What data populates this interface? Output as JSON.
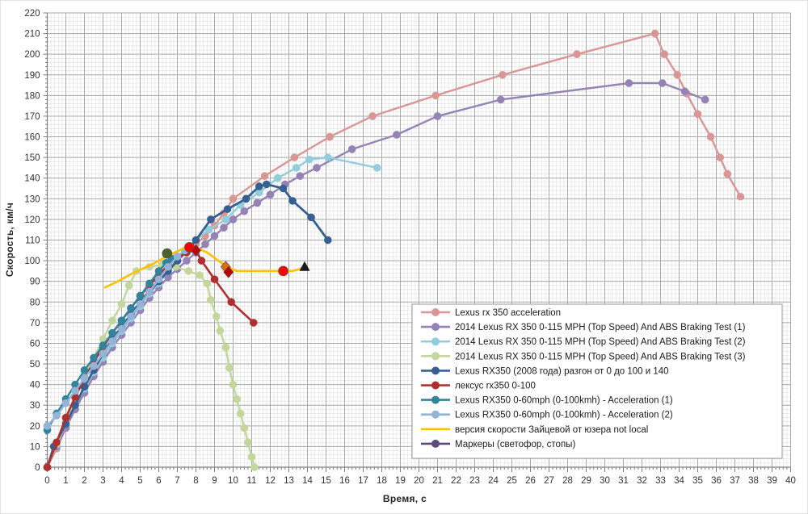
{
  "chart_data": {
    "type": "line",
    "title": "",
    "xlabel": "Время, с",
    "ylabel": "Скорость, км/ч",
    "xlim": [
      0,
      40
    ],
    "ylim": [
      0,
      220
    ],
    "x_major_step": 1,
    "x_minor_step": 0.2,
    "y_major_step": 10,
    "y_minor_step": 2,
    "grid": "on",
    "legend_position": "inside-right-bottom",
    "colors": {
      "major_grid": "#a9a9a9",
      "minor_grid": "#dedede",
      "axis": "#7f7f7f",
      "tick_label": "#333333",
      "legend_border": "#9a9a9a",
      "legend_bg": "#ffffff",
      "legend_text": "#1a1a1a"
    },
    "series": [
      {
        "name": "Lexus rx 350  acceleration",
        "color": "#d99694",
        "marker": "circle",
        "width": 2.4,
        "points": [
          [
            0,
            0
          ],
          [
            0.5,
            9
          ],
          [
            1,
            19
          ],
          [
            1.5,
            28
          ],
          [
            2,
            37
          ],
          [
            2.5,
            45
          ],
          [
            3,
            53
          ],
          [
            3.5,
            60
          ],
          [
            4,
            67
          ],
          [
            4.5,
            74
          ],
          [
            5,
            80
          ],
          [
            5.5,
            86
          ],
          [
            6,
            91
          ],
          [
            6.5,
            96
          ],
          [
            7,
            100
          ],
          [
            7.5,
            104
          ],
          [
            8,
            108
          ],
          [
            8.5,
            112
          ],
          [
            9,
            117
          ],
          [
            9.5,
            123
          ],
          [
            10,
            130
          ],
          [
            11.7,
            141
          ],
          [
            13.3,
            150
          ],
          [
            15.2,
            160
          ],
          [
            17.5,
            170
          ],
          [
            20.9,
            180
          ],
          [
            24.5,
            190
          ],
          [
            28.5,
            200
          ],
          [
            32.7,
            210
          ],
          [
            33.2,
            200
          ],
          [
            33.9,
            190
          ],
          [
            34.4,
            181
          ],
          [
            35,
            171
          ],
          [
            35.7,
            160
          ],
          [
            36.2,
            150
          ],
          [
            36.6,
            142
          ],
          [
            37.3,
            131
          ]
        ]
      },
      {
        "name": "2014  Lexus RX 350  0-115  MPH (Top Speed) And ABS Braking Test (1)",
        "color": "#9583b5",
        "marker": "circle",
        "width": 2.4,
        "points": [
          [
            0,
            0
          ],
          [
            0.5,
            10
          ],
          [
            1,
            19
          ],
          [
            1.5,
            28
          ],
          [
            2,
            36
          ],
          [
            2.5,
            44
          ],
          [
            3,
            51
          ],
          [
            3.5,
            58
          ],
          [
            4,
            64
          ],
          [
            4.5,
            70
          ],
          [
            5,
            76
          ],
          [
            5.5,
            82
          ],
          [
            6,
            87
          ],
          [
            6.5,
            92
          ],
          [
            7,
            96
          ],
          [
            7.5,
            100
          ],
          [
            8,
            104
          ],
          [
            8.5,
            108
          ],
          [
            9,
            112
          ],
          [
            9.5,
            116
          ],
          [
            10,
            120
          ],
          [
            10.6,
            124
          ],
          [
            11.3,
            128
          ],
          [
            12,
            132
          ],
          [
            12.8,
            137
          ],
          [
            13.6,
            141
          ],
          [
            14.5,
            145
          ],
          [
            16.4,
            154
          ],
          [
            18.8,
            161
          ],
          [
            21,
            170
          ],
          [
            24.4,
            178
          ],
          [
            31.3,
            186
          ],
          [
            33.1,
            186
          ],
          [
            34.3,
            182
          ],
          [
            35.4,
            178
          ]
        ]
      },
      {
        "name": "2014  Lexus RX 350  0-115  MPH (Top Speed) And ABS Braking Test (2)",
        "color": "#92cddc",
        "marker": "circle",
        "width": 2.4,
        "points": [
          [
            0,
            0
          ],
          [
            0.5,
            11
          ],
          [
            1,
            21
          ],
          [
            1.5,
            30
          ],
          [
            2,
            38
          ],
          [
            2.5,
            46
          ],
          [
            3,
            53
          ],
          [
            3.5,
            60
          ],
          [
            4,
            66
          ],
          [
            4.5,
            72
          ],
          [
            5,
            78
          ],
          [
            5.5,
            84
          ],
          [
            6,
            89
          ],
          [
            6.5,
            95
          ],
          [
            7,
            100
          ],
          [
            7.5,
            105
          ],
          [
            8,
            110
          ],
          [
            8.7,
            115
          ],
          [
            9.6,
            120
          ],
          [
            10.4,
            127
          ],
          [
            11.4,
            133
          ],
          [
            12.4,
            140
          ],
          [
            13.4,
            145
          ],
          [
            14.1,
            149
          ],
          [
            15.1,
            150
          ],
          [
            17.75,
            145
          ]
        ]
      },
      {
        "name": "2014  Lexus RX 350  0-115  MPH (Top Speed) And ABS Braking Test (3)",
        "color": "#c3d69b",
        "marker": "circle",
        "width": 2.4,
        "points": [
          [
            0,
            0
          ],
          [
            0.5,
            11
          ],
          [
            1,
            22
          ],
          [
            1.5,
            33
          ],
          [
            2,
            44
          ],
          [
            2.5,
            53
          ],
          [
            3,
            62
          ],
          [
            3.5,
            71
          ],
          [
            4,
            79
          ],
          [
            4.4,
            88
          ],
          [
            4.8,
            95
          ],
          [
            5.5,
            97
          ],
          [
            6.2,
            98
          ],
          [
            6.9,
            97
          ],
          [
            7.6,
            95
          ],
          [
            8.2,
            93
          ],
          [
            8.6,
            89
          ],
          [
            8.8,
            81
          ],
          [
            9.1,
            73
          ],
          [
            9.3,
            66
          ],
          [
            9.6,
            58
          ],
          [
            9.8,
            48
          ],
          [
            10,
            40
          ],
          [
            10.2,
            33
          ],
          [
            10.4,
            26
          ],
          [
            10.6,
            19
          ],
          [
            10.8,
            12
          ],
          [
            11,
            5
          ],
          [
            11.15,
            0
          ]
        ]
      },
      {
        "name": "Lexus RX350  (2008  года) разгон от 0 до 100 и 140",
        "color": "#376092",
        "marker": "circle",
        "width": 2.8,
        "points": [
          [
            0,
            0
          ],
          [
            0.35,
            10
          ],
          [
            1,
            21
          ],
          [
            1.5,
            30
          ],
          [
            2,
            39
          ],
          [
            2.5,
            47
          ],
          [
            3,
            55
          ],
          [
            3.5,
            62
          ],
          [
            4,
            68
          ],
          [
            4.5,
            74
          ],
          [
            5,
            80
          ],
          [
            5.5,
            85
          ],
          [
            6,
            90
          ],
          [
            6.5,
            95
          ],
          [
            7,
            100
          ],
          [
            7.5,
            105
          ],
          [
            8,
            110
          ],
          [
            8.8,
            120
          ],
          [
            9.7,
            125
          ],
          [
            10.7,
            130
          ],
          [
            11.4,
            136
          ],
          [
            11.8,
            137
          ],
          [
            12.7,
            135
          ],
          [
            13.2,
            129
          ],
          [
            14.2,
            121
          ],
          [
            15.1,
            110
          ]
        ]
      },
      {
        "name": "лексус rx350  0-100",
        "color": "#b02e2e",
        "marker": "circle",
        "width": 2.6,
        "points": [
          [
            0,
            0
          ],
          [
            0.5,
            12
          ],
          [
            1,
            24
          ],
          [
            1.5,
            34
          ],
          [
            2,
            43
          ],
          [
            2.5,
            51
          ],
          [
            3,
            58
          ],
          [
            3.5,
            65
          ],
          [
            4,
            71
          ],
          [
            4.5,
            77
          ],
          [
            5,
            83
          ],
          [
            5.5,
            88
          ],
          [
            6,
            93
          ],
          [
            6.5,
            98
          ],
          [
            7,
            102
          ],
          [
            7.5,
            104
          ],
          [
            8,
            105
          ],
          [
            8.3,
            100
          ],
          [
            9,
            91
          ],
          [
            9.9,
            80
          ],
          [
            11.1,
            70
          ]
        ]
      },
      {
        "name": "Lexus RX350  0-60mph  (0-100kmh) - Acceleration  (1)",
        "color": "#31849b",
        "marker": "circle",
        "width": 2.4,
        "points": [
          [
            0,
            18
          ],
          [
            0.5,
            26
          ],
          [
            1,
            33
          ],
          [
            1.5,
            40
          ],
          [
            2,
            47
          ],
          [
            2.5,
            53
          ],
          [
            3,
            59
          ],
          [
            3.5,
            65
          ],
          [
            4,
            71
          ],
          [
            4.5,
            77
          ],
          [
            5,
            83
          ],
          [
            5.5,
            89
          ],
          [
            6,
            95
          ],
          [
            6.4,
            99
          ],
          [
            6.7,
            101
          ]
        ]
      },
      {
        "name": "Lexus RX350  0-60mph  (0-100kmh) - Acceleration  (2)",
        "color": "#95b3d7",
        "marker": "circle",
        "width": 2.4,
        "points": [
          [
            0,
            20
          ],
          [
            0.5,
            25
          ],
          [
            1,
            31
          ],
          [
            1.5,
            37
          ],
          [
            2,
            43
          ],
          [
            2.5,
            49
          ],
          [
            3,
            55
          ],
          [
            3.5,
            61
          ],
          [
            4,
            67
          ],
          [
            4.5,
            73
          ],
          [
            5,
            79
          ],
          [
            5.5,
            85
          ],
          [
            6,
            91
          ],
          [
            6.5,
            97
          ],
          [
            7,
            102
          ],
          [
            7.4,
            105
          ]
        ]
      },
      {
        "name": "версия скорости Зайцевой от юзера not local",
        "color": "#ffc000",
        "marker": "none",
        "width": 2.6,
        "points": [
          [
            3.1,
            87
          ],
          [
            3.8,
            90
          ],
          [
            4.4,
            93
          ],
          [
            5.1,
            96
          ],
          [
            5.8,
            99
          ],
          [
            6.4,
            102
          ],
          [
            7.1,
            105
          ],
          [
            7.6,
            107
          ],
          [
            8.1,
            106
          ],
          [
            8.6,
            104
          ],
          [
            9.2,
            100
          ],
          [
            9.7,
            97
          ],
          [
            10.2,
            95
          ],
          [
            11,
            95
          ],
          [
            12,
            95
          ],
          [
            12.7,
            95
          ],
          [
            13.2,
            95
          ],
          [
            13.6,
            96
          ],
          [
            13.85,
            97
          ]
        ]
      },
      {
        "name": "Маркеры (светофор, стопы)",
        "color": "#604a7b",
        "marker": "circle",
        "width": 2.4,
        "points": []
      }
    ],
    "event_markers": [
      {
        "x": 6.45,
        "y": 103.5,
        "shape": "circle",
        "color": "#4f6228",
        "label": "светофор"
      },
      {
        "x": 7.65,
        "y": 106.5,
        "shape": "circle",
        "color": "#ff0000",
        "label": "стоп"
      },
      {
        "x": 8.0,
        "y": 105,
        "shape": "diamond",
        "color": "#c00000",
        "label": "стоп"
      },
      {
        "x": 9.6,
        "y": 97,
        "shape": "diamond",
        "color": "#e46c0a",
        "label": "стоп"
      },
      {
        "x": 9.75,
        "y": 94.5,
        "shape": "diamond",
        "color": "#c00000",
        "label": "стоп"
      },
      {
        "x": 12.7,
        "y": 95,
        "shape": "circle",
        "color": "#ff0000",
        "label": "стоп"
      },
      {
        "x": 13.85,
        "y": 97,
        "shape": "triangle",
        "color": "#1a1a1a",
        "label": "стоп"
      }
    ],
    "x_tick_labels": [
      "0",
      "1",
      "2",
      "3",
      "4",
      "5",
      "6",
      "7",
      "8",
      "9",
      "10",
      "11",
      "12",
      "13",
      "14",
      "15",
      "16",
      "17",
      "18",
      "19",
      "20",
      "21",
      "22",
      "23",
      "24",
      "25",
      "26",
      "27",
      "28",
      "29",
      "30",
      "31",
      "32",
      "33",
      "34",
      "35",
      "36",
      "37",
      "38",
      "39",
      "40"
    ],
    "y_tick_labels": [
      "0",
      "10",
      "20",
      "30",
      "40",
      "50",
      "60",
      "70",
      "80",
      "90",
      "100",
      "110",
      "120",
      "130",
      "140",
      "150",
      "160",
      "170",
      "180",
      "190",
      "200",
      "210",
      "220"
    ]
  }
}
